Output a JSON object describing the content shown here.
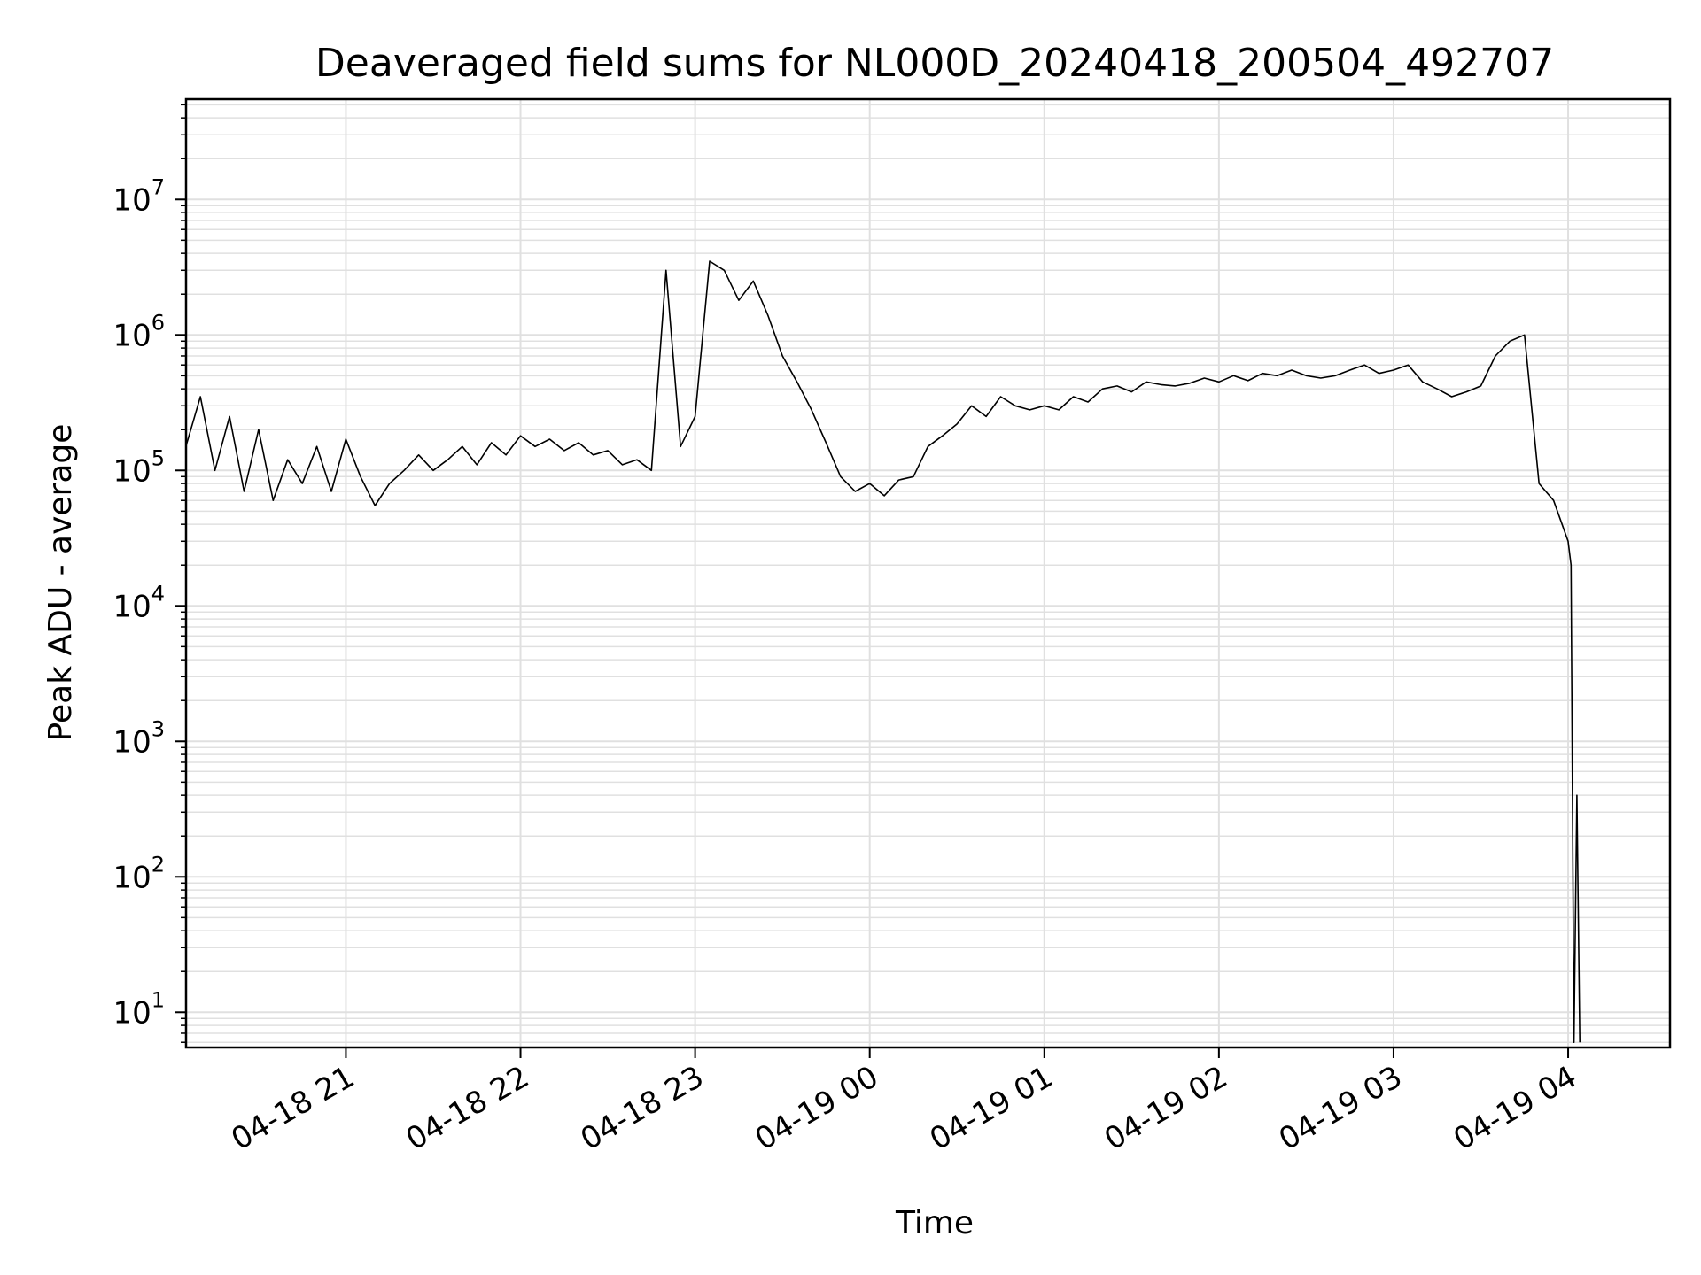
{
  "chart_data": {
    "type": "line",
    "title": "Deaveraged field sums for NL000D_20240418_200504_492707",
    "xlabel": "Time",
    "ylabel": "Peak ADU - average",
    "y_scale": "log",
    "ylim": [
      5.5,
      55000000
    ],
    "xlim": [
      "2024-04-18 20:05:04",
      "2024-04-19 04:35:00"
    ],
    "grid": true,
    "legend": "none",
    "line_color": "#000000",
    "grid_color": "#e0e0e0",
    "x_ticks": [
      {
        "value": "2024-04-18 21:00",
        "label": "04-18 21"
      },
      {
        "value": "2024-04-18 22:00",
        "label": "04-18 22"
      },
      {
        "value": "2024-04-18 23:00",
        "label": "04-18 23"
      },
      {
        "value": "2024-04-19 00:00",
        "label": "04-19 00"
      },
      {
        "value": "2024-04-19 01:00",
        "label": "04-19 01"
      },
      {
        "value": "2024-04-19 02:00",
        "label": "04-19 02"
      },
      {
        "value": "2024-04-19 03:00",
        "label": "04-19 03"
      },
      {
        "value": "2024-04-19 04:00",
        "label": "04-19 04"
      }
    ],
    "y_ticks": [
      {
        "value": 10,
        "base": "10",
        "exp": "1"
      },
      {
        "value": 100,
        "base": "10",
        "exp": "2"
      },
      {
        "value": 1000,
        "base": "10",
        "exp": "3"
      },
      {
        "value": 10000,
        "base": "10",
        "exp": "4"
      },
      {
        "value": 100000,
        "base": "10",
        "exp": "5"
      },
      {
        "value": 1000000,
        "base": "10",
        "exp": "6"
      },
      {
        "value": 10000000,
        "base": "10",
        "exp": "7"
      }
    ],
    "series": [
      {
        "points": [
          [
            "2024-04-18 20:05",
            150000
          ],
          [
            "2024-04-18 20:10",
            350000
          ],
          [
            "2024-04-18 20:15",
            100000
          ],
          [
            "2024-04-18 20:20",
            250000
          ],
          [
            "2024-04-18 20:25",
            70000
          ],
          [
            "2024-04-18 20:30",
            200000
          ],
          [
            "2024-04-18 20:35",
            60000
          ],
          [
            "2024-04-18 20:40",
            120000
          ],
          [
            "2024-04-18 20:45",
            80000
          ],
          [
            "2024-04-18 20:50",
            150000
          ],
          [
            "2024-04-18 20:55",
            70000
          ],
          [
            "2024-04-18 21:00",
            170000
          ],
          [
            "2024-04-18 21:05",
            90000
          ],
          [
            "2024-04-18 21:10",
            55000
          ],
          [
            "2024-04-18 21:15",
            80000
          ],
          [
            "2024-04-18 21:20",
            100000
          ],
          [
            "2024-04-18 21:25",
            130000
          ],
          [
            "2024-04-18 21:30",
            100000
          ],
          [
            "2024-04-18 21:35",
            120000
          ],
          [
            "2024-04-18 21:40",
            150000
          ],
          [
            "2024-04-18 21:45",
            110000
          ],
          [
            "2024-04-18 21:50",
            160000
          ],
          [
            "2024-04-18 21:55",
            130000
          ],
          [
            "2024-04-18 22:00",
            180000
          ],
          [
            "2024-04-18 22:05",
            150000
          ],
          [
            "2024-04-18 22:10",
            170000
          ],
          [
            "2024-04-18 22:15",
            140000
          ],
          [
            "2024-04-18 22:20",
            160000
          ],
          [
            "2024-04-18 22:25",
            130000
          ],
          [
            "2024-04-18 22:30",
            140000
          ],
          [
            "2024-04-18 22:35",
            110000
          ],
          [
            "2024-04-18 22:40",
            120000
          ],
          [
            "2024-04-18 22:45",
            100000
          ],
          [
            "2024-04-18 22:50",
            3000000
          ],
          [
            "2024-04-18 22:55",
            150000
          ],
          [
            "2024-04-18 23:00",
            250000
          ],
          [
            "2024-04-18 23:05",
            3500000
          ],
          [
            "2024-04-18 23:10",
            3000000
          ],
          [
            "2024-04-18 23:15",
            1800000
          ],
          [
            "2024-04-18 23:20",
            2500000
          ],
          [
            "2024-04-18 23:25",
            1400000
          ],
          [
            "2024-04-18 23:30",
            700000
          ],
          [
            "2024-04-18 23:35",
            450000
          ],
          [
            "2024-04-18 23:40",
            280000
          ],
          [
            "2024-04-18 23:45",
            160000
          ],
          [
            "2024-04-18 23:50",
            90000
          ],
          [
            "2024-04-18 23:55",
            70000
          ],
          [
            "2024-04-19 00:00",
            80000
          ],
          [
            "2024-04-19 00:05",
            65000
          ],
          [
            "2024-04-19 00:10",
            85000
          ],
          [
            "2024-04-19 00:15",
            90000
          ],
          [
            "2024-04-19 00:20",
            150000
          ],
          [
            "2024-04-19 00:25",
            180000
          ],
          [
            "2024-04-19 00:30",
            220000
          ],
          [
            "2024-04-19 00:35",
            300000
          ],
          [
            "2024-04-19 00:40",
            250000
          ],
          [
            "2024-04-19 00:45",
            350000
          ],
          [
            "2024-04-19 00:50",
            300000
          ],
          [
            "2024-04-19 00:55",
            280000
          ],
          [
            "2024-04-19 01:00",
            300000
          ],
          [
            "2024-04-19 01:05",
            280000
          ],
          [
            "2024-04-19 01:10",
            350000
          ],
          [
            "2024-04-19 01:15",
            320000
          ],
          [
            "2024-04-19 01:20",
            400000
          ],
          [
            "2024-04-19 01:25",
            420000
          ],
          [
            "2024-04-19 01:30",
            380000
          ],
          [
            "2024-04-19 01:35",
            450000
          ],
          [
            "2024-04-19 01:40",
            430000
          ],
          [
            "2024-04-19 01:45",
            420000
          ],
          [
            "2024-04-19 01:50",
            440000
          ],
          [
            "2024-04-19 01:55",
            480000
          ],
          [
            "2024-04-19 02:00",
            450000
          ],
          [
            "2024-04-19 02:05",
            500000
          ],
          [
            "2024-04-19 02:10",
            460000
          ],
          [
            "2024-04-19 02:15",
            520000
          ],
          [
            "2024-04-19 02:20",
            500000
          ],
          [
            "2024-04-19 02:25",
            550000
          ],
          [
            "2024-04-19 02:30",
            500000
          ],
          [
            "2024-04-19 02:35",
            480000
          ],
          [
            "2024-04-19 02:40",
            500000
          ],
          [
            "2024-04-19 02:45",
            550000
          ],
          [
            "2024-04-19 02:50",
            600000
          ],
          [
            "2024-04-19 02:55",
            520000
          ],
          [
            "2024-04-19 03:00",
            550000
          ],
          [
            "2024-04-19 03:05",
            600000
          ],
          [
            "2024-04-19 03:10",
            450000
          ],
          [
            "2024-04-19 03:15",
            400000
          ],
          [
            "2024-04-19 03:20",
            350000
          ],
          [
            "2024-04-19 03:25",
            380000
          ],
          [
            "2024-04-19 03:30",
            420000
          ],
          [
            "2024-04-19 03:35",
            700000
          ],
          [
            "2024-04-19 03:40",
            900000
          ],
          [
            "2024-04-19 03:45",
            1000000
          ],
          [
            "2024-04-19 03:50",
            80000
          ],
          [
            "2024-04-19 03:55",
            60000
          ],
          [
            "2024-04-19 04:00",
            30000
          ],
          [
            "2024-04-19 04:01",
            20000
          ],
          [
            "2024-04-19 04:02",
            6
          ],
          [
            "2024-04-19 04:03",
            400
          ],
          [
            "2024-04-19 04:04",
            6
          ]
        ]
      }
    ]
  }
}
